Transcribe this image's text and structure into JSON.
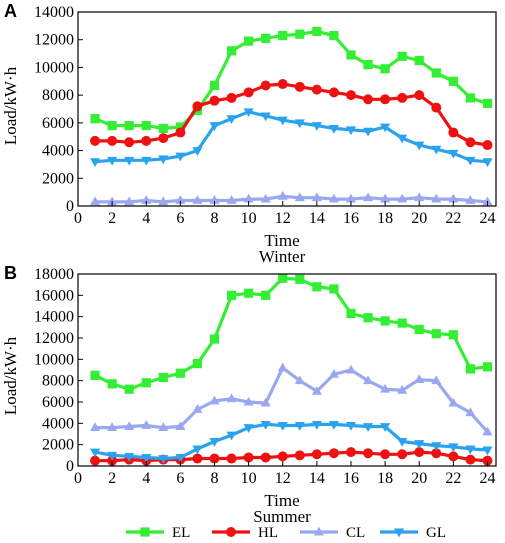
{
  "figure": {
    "colors": {
      "EL": "#33ee33",
      "HL": "#ee1111",
      "CL": "#99a8f0",
      "GL": "#2aa2ee"
    },
    "legend": [
      {
        "key": "EL",
        "label": "EL",
        "marker": "square"
      },
      {
        "key": "HL",
        "label": "HL",
        "marker": "circle"
      },
      {
        "key": "CL",
        "label": "CL",
        "marker": "triangle-up"
      },
      {
        "key": "GL",
        "label": "GL",
        "marker": "triangle-down"
      }
    ]
  },
  "chart_data": [
    {
      "type": "line",
      "panel_label": "A",
      "title": "Winter",
      "xlabel": "Time",
      "ylabel": "Load/kW·h",
      "xlim": [
        0,
        24.5
      ],
      "ylim": [
        0,
        14000
      ],
      "xticks": [
        0,
        2,
        4,
        6,
        8,
        10,
        12,
        14,
        16,
        18,
        20,
        22,
        24
      ],
      "yticks": [
        0,
        2000,
        4000,
        6000,
        8000,
        10000,
        12000,
        14000
      ],
      "grid": false,
      "x": [
        1,
        2,
        3,
        4,
        5,
        6,
        7,
        8,
        9,
        10,
        11,
        12,
        13,
        14,
        15,
        16,
        17,
        18,
        19,
        20,
        21,
        22,
        23,
        24
      ],
      "series": [
        {
          "key": "EL",
          "name": "EL",
          "marker": "square",
          "values": [
            6300,
            5800,
            5800,
            5800,
            5600,
            5700,
            6900,
            8700,
            11200,
            11900,
            12100,
            12300,
            12400,
            12600,
            12300,
            10900,
            10200,
            9900,
            10800,
            10500,
            9600,
            9000,
            7800,
            7400
          ]
        },
        {
          "key": "HL",
          "name": "HL",
          "marker": "circle",
          "values": [
            4700,
            4700,
            4600,
            4700,
            4900,
            5300,
            7200,
            7600,
            7800,
            8200,
            8700,
            8800,
            8600,
            8400,
            8200,
            8000,
            7700,
            7700,
            7800,
            8000,
            7100,
            5300,
            4600,
            4400
          ]
        },
        {
          "key": "CL",
          "name": "CL",
          "marker": "triangle-up",
          "values": [
            300,
            300,
            300,
            400,
            300,
            400,
            400,
            400,
            400,
            500,
            500,
            700,
            600,
            600,
            500,
            500,
            600,
            500,
            500,
            600,
            500,
            500,
            400,
            300
          ]
        },
        {
          "key": "GL",
          "name": "GL",
          "marker": "triangle-down",
          "values": [
            3200,
            3300,
            3300,
            3300,
            3400,
            3600,
            4000,
            5800,
            6300,
            6800,
            6500,
            6200,
            6000,
            5800,
            5600,
            5500,
            5400,
            5700,
            4900,
            4400,
            4100,
            3800,
            3300,
            3200
          ]
        }
      ]
    },
    {
      "type": "line",
      "panel_label": "B",
      "title": "Summer",
      "xlabel": "Time",
      "ylabel": "Load/kW·h",
      "xlim": [
        0,
        24.5
      ],
      "ylim": [
        0,
        18000
      ],
      "xticks": [
        0,
        2,
        4,
        6,
        8,
        10,
        12,
        14,
        16,
        18,
        20,
        22,
        24
      ],
      "yticks": [
        0,
        2000,
        4000,
        6000,
        8000,
        10000,
        12000,
        14000,
        16000,
        18000
      ],
      "grid": false,
      "x": [
        1,
        2,
        3,
        4,
        5,
        6,
        7,
        8,
        9,
        10,
        11,
        12,
        13,
        14,
        15,
        16,
        17,
        18,
        19,
        20,
        21,
        22,
        23,
        24
      ],
      "series": [
        {
          "key": "EL",
          "name": "EL",
          "marker": "square",
          "values": [
            8500,
            7700,
            7200,
            7800,
            8300,
            8700,
            9600,
            11900,
            16000,
            16200,
            16000,
            17600,
            17500,
            16800,
            16600,
            14300,
            13900,
            13600,
            13400,
            12800,
            12400,
            12300,
            9100,
            9300
          ]
        },
        {
          "key": "HL",
          "name": "HL",
          "marker": "circle",
          "values": [
            500,
            500,
            600,
            500,
            600,
            600,
            700,
            700,
            700,
            800,
            800,
            900,
            1000,
            1100,
            1200,
            1300,
            1200,
            1100,
            1100,
            1300,
            1200,
            900,
            600,
            500
          ]
        },
        {
          "key": "CL",
          "name": "CL",
          "marker": "triangle-up",
          "values": [
            3600,
            3600,
            3700,
            3800,
            3600,
            3700,
            5300,
            6100,
            6300,
            6000,
            5900,
            9200,
            8000,
            7000,
            8600,
            9000,
            8000,
            7200,
            7100,
            8100,
            8000,
            5900,
            5000,
            3200
          ]
        },
        {
          "key": "GL",
          "name": "GL",
          "marker": "triangle-down",
          "values": [
            1300,
            1000,
            900,
            800,
            700,
            800,
            1600,
            2300,
            2900,
            3600,
            3900,
            3800,
            3800,
            3900,
            3900,
            3800,
            3700,
            3700,
            2300,
            2100,
            1900,
            1800,
            1600,
            1500
          ]
        }
      ]
    }
  ]
}
